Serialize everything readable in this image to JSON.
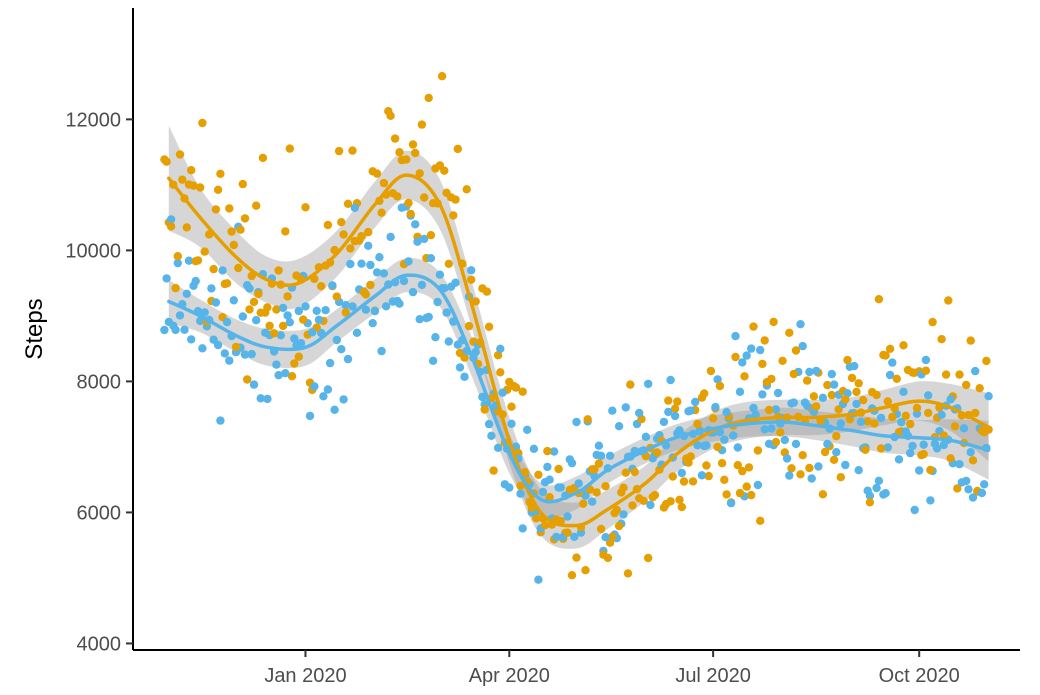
{
  "chart_data": {
    "type": "scatter",
    "title": "",
    "xlabel": "",
    "ylabel": "Steps",
    "xlim": [
      "2019-10-16",
      "2020-11-15"
    ],
    "ylim": [
      3900,
      13700
    ],
    "x_ticks": [
      {
        "date": "2020-01-01",
        "label": "Jan 2020"
      },
      {
        "date": "2020-04-01",
        "label": "Apr 2020"
      },
      {
        "date": "2020-07-01",
        "label": "Jul 2020"
      },
      {
        "date": "2020-10-01",
        "label": "Oct 2020"
      }
    ],
    "y_ticks": [
      4000,
      6000,
      8000,
      10000,
      12000
    ],
    "y_tick_labels": [
      "4000",
      "6000",
      "8000",
      "10000",
      "12000"
    ],
    "grid": false,
    "legend": "none",
    "series": [
      {
        "color": "#E69F00",
        "smooth": [
          {
            "x": "2019-11-01",
            "y": 11100
          },
          {
            "x": "2019-11-15",
            "y": 10500
          },
          {
            "x": "2019-12-01",
            "y": 9900
          },
          {
            "x": "2019-12-15",
            "y": 9550
          },
          {
            "x": "2019-12-29",
            "y": 9500
          },
          {
            "x": "2020-01-15",
            "y": 9950
          },
          {
            "x": "2020-02-01",
            "y": 10700
          },
          {
            "x": "2020-02-15",
            "y": 11150
          },
          {
            "x": "2020-03-01",
            "y": 10700
          },
          {
            "x": "2020-03-15",
            "y": 9200
          },
          {
            "x": "2020-04-01",
            "y": 7100
          },
          {
            "x": "2020-04-15",
            "y": 6000
          },
          {
            "x": "2020-05-01",
            "y": 5800
          },
          {
            "x": "2020-05-15",
            "y": 6050
          },
          {
            "x": "2020-06-01",
            "y": 6450
          },
          {
            "x": "2020-06-15",
            "y": 6900
          },
          {
            "x": "2020-07-01",
            "y": 7250
          },
          {
            "x": "2020-07-15",
            "y": 7400
          },
          {
            "x": "2020-08-01",
            "y": 7450
          },
          {
            "x": "2020-08-15",
            "y": 7450
          },
          {
            "x": "2020-09-01",
            "y": 7500
          },
          {
            "x": "2020-09-15",
            "y": 7600
          },
          {
            "x": "2020-10-01",
            "y": 7700
          },
          {
            "x": "2020-10-15",
            "y": 7600
          },
          {
            "x": "2020-11-01",
            "y": 7300
          }
        ],
        "band": {
          "upper": [
            11900,
            10950,
            10300,
            9900,
            9870,
            10300,
            11050,
            11520,
            11080,
            9550,
            7450,
            6350,
            6150,
            6350,
            6720,
            7170,
            7530,
            7680,
            7720,
            7720,
            7760,
            7870,
            8000,
            7960,
            7820
          ],
          "lower": [
            10300,
            10050,
            9500,
            9200,
            9130,
            9600,
            10350,
            10780,
            10320,
            8850,
            6750,
            5650,
            5450,
            5750,
            6180,
            6630,
            6970,
            7120,
            7180,
            7180,
            7240,
            7330,
            7400,
            7240,
            6780
          ]
        }
      },
      {
        "color": "#56B4E9",
        "smooth": [
          {
            "x": "2019-11-01",
            "y": 9220
          },
          {
            "x": "2019-11-15",
            "y": 9000
          },
          {
            "x": "2019-12-01",
            "y": 8700
          },
          {
            "x": "2019-12-15",
            "y": 8520
          },
          {
            "x": "2020-01-01",
            "y": 8520
          },
          {
            "x": "2020-01-15",
            "y": 8850
          },
          {
            "x": "2020-02-01",
            "y": 9300
          },
          {
            "x": "2020-02-15",
            "y": 9620
          },
          {
            "x": "2020-03-01",
            "y": 9400
          },
          {
            "x": "2020-03-15",
            "y": 8400
          },
          {
            "x": "2020-04-01",
            "y": 6900
          },
          {
            "x": "2020-04-15",
            "y": 6200
          },
          {
            "x": "2020-05-01",
            "y": 6300
          },
          {
            "x": "2020-05-15",
            "y": 6650
          },
          {
            "x": "2020-06-01",
            "y": 6950
          },
          {
            "x": "2020-06-15",
            "y": 7150
          },
          {
            "x": "2020-07-01",
            "y": 7280
          },
          {
            "x": "2020-07-15",
            "y": 7350
          },
          {
            "x": "2020-08-01",
            "y": 7380
          },
          {
            "x": "2020-08-15",
            "y": 7330
          },
          {
            "x": "2020-09-01",
            "y": 7250
          },
          {
            "x": "2020-09-15",
            "y": 7170
          },
          {
            "x": "2020-10-01",
            "y": 7140
          },
          {
            "x": "2020-10-15",
            "y": 7100
          },
          {
            "x": "2020-11-01",
            "y": 6950
          }
        ],
        "band": {
          "upper": [
            9550,
            9250,
            8950,
            8800,
            8800,
            9100,
            9560,
            9880,
            9660,
            8700,
            7200,
            6450,
            6550,
            6860,
            7150,
            7350,
            7480,
            7550,
            7600,
            7550,
            7490,
            7430,
            7410,
            7420,
            7400
          ],
          "lower": [
            8890,
            8750,
            8450,
            8240,
            8240,
            8600,
            9040,
            9360,
            9140,
            8100,
            6600,
            5950,
            6050,
            6440,
            6750,
            6950,
            7080,
            7150,
            7160,
            7110,
            7010,
            6910,
            6870,
            6780,
            6500
          ]
        }
      }
    ]
  }
}
